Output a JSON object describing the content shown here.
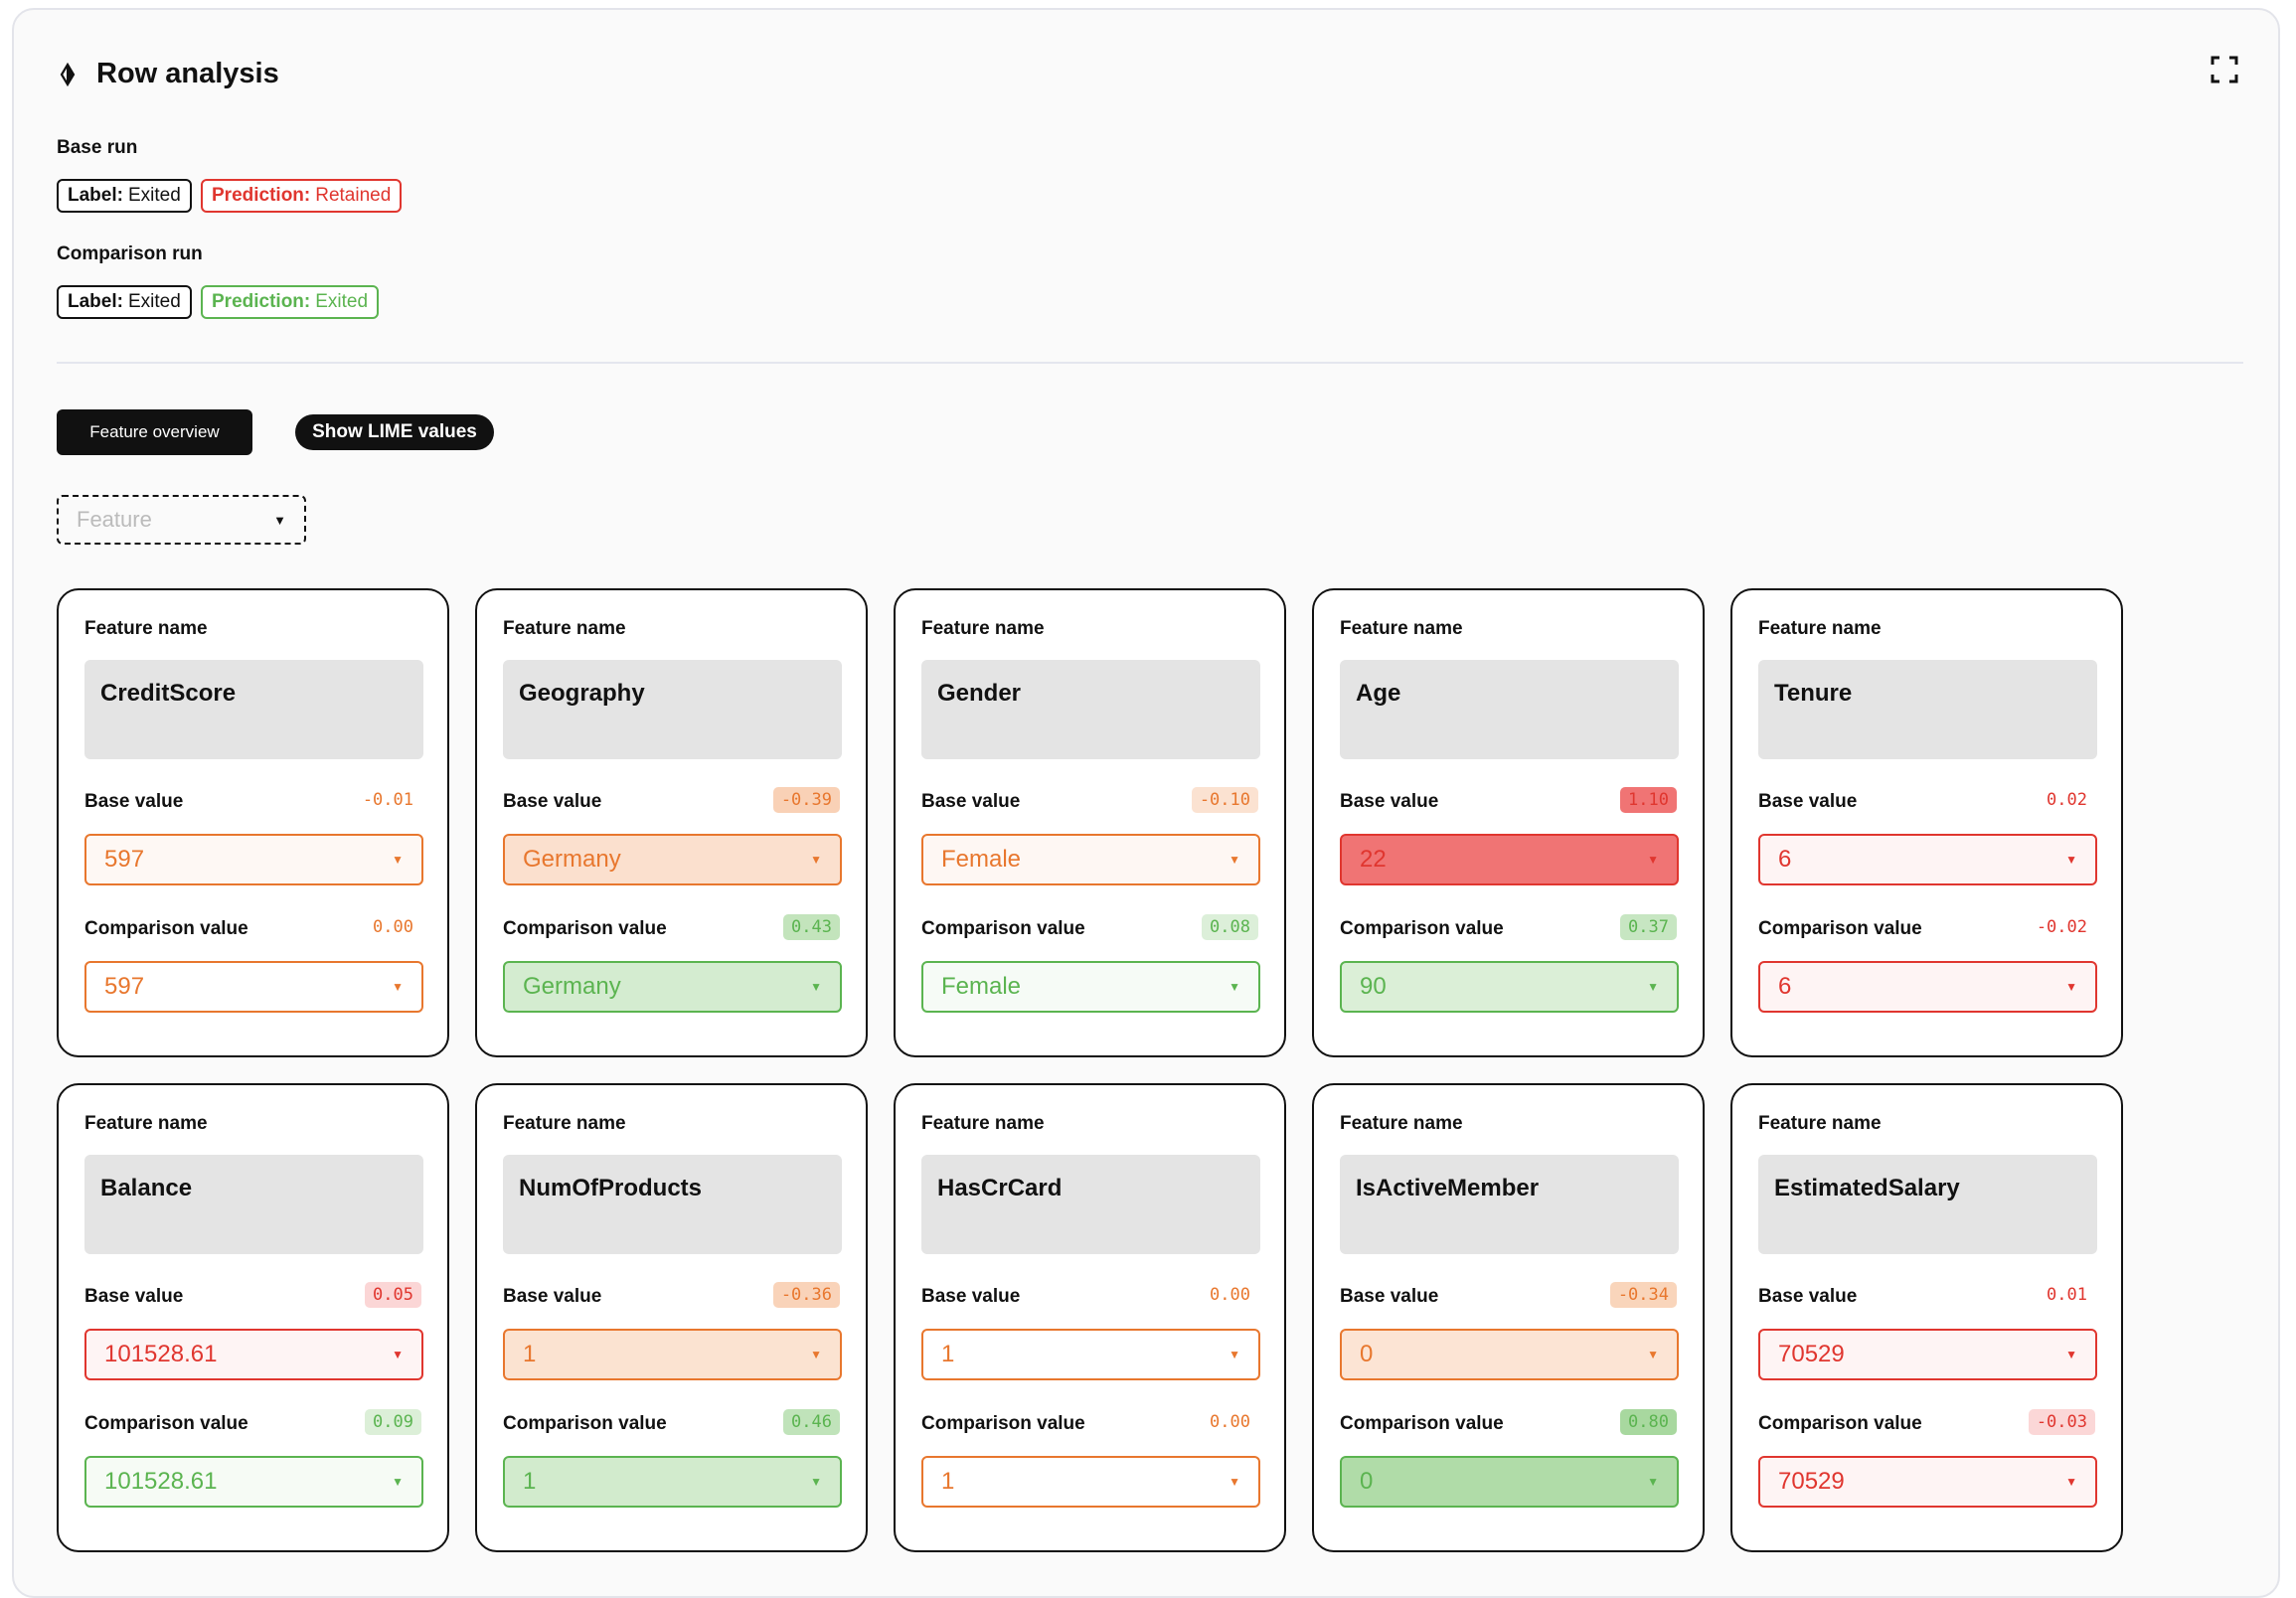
{
  "panel": {
    "title": "Row analysis",
    "icon": "diamond-pin-icon",
    "expand_icon": "expand-icon"
  },
  "base_run": {
    "title": "Base run",
    "label": {
      "key": "Label:",
      "value": "Exited"
    },
    "prediction": {
      "key": "Prediction:",
      "value": "Retained",
      "color": "#e0362f"
    }
  },
  "comparison_run": {
    "title": "Comparison run",
    "label": {
      "key": "Label:",
      "value": "Exited"
    },
    "prediction": {
      "key": "Prediction:",
      "value": "Exited",
      "color": "#5bb450"
    }
  },
  "controls": {
    "feature_overview": "Feature overview",
    "show_lime": "Show LIME values",
    "feature_placeholder": "Feature"
  },
  "card_labels": {
    "feature_name": "Feature name",
    "base_value": "Base value",
    "comparison_value": "Comparison value"
  },
  "features": [
    {
      "name": "CreditScore",
      "base_value": "597",
      "base_score": "-0.01",
      "comparison_value": "597",
      "comparison_score": "0.00"
    },
    {
      "name": "Geography",
      "base_value": "Germany",
      "base_score": "-0.39",
      "comparison_value": "Germany",
      "comparison_score": "0.43"
    },
    {
      "name": "Gender",
      "base_value": "Female",
      "base_score": "-0.10",
      "comparison_value": "Female",
      "comparison_score": "0.08"
    },
    {
      "name": "Age",
      "base_value": "22",
      "base_score": "1.10",
      "comparison_value": "90",
      "comparison_score": "0.37"
    },
    {
      "name": "Tenure",
      "base_value": "6",
      "base_score": "0.02",
      "comparison_value": "6",
      "comparison_score": "-0.02"
    },
    {
      "name": "Balance",
      "base_value": "101528.61",
      "base_score": "0.05",
      "comparison_value": "101528.61",
      "comparison_score": "0.09"
    },
    {
      "name": "NumOfProducts",
      "base_value": "1",
      "base_score": "-0.36",
      "comparison_value": "1",
      "comparison_score": "0.46"
    },
    {
      "name": "HasCrCard",
      "base_value": "1",
      "base_score": "0.00",
      "comparison_value": "1",
      "comparison_score": "0.00"
    },
    {
      "name": "IsActiveMember",
      "base_value": "0",
      "base_score": "-0.34",
      "comparison_value": "0",
      "comparison_score": "0.80"
    },
    {
      "name": "EstimatedSalary",
      "base_value": "70529",
      "base_score": "0.01",
      "comparison_value": "70529",
      "comparison_score": "-0.03"
    }
  ],
  "colors": {
    "orange": "#e8772e",
    "red": "#e0362f",
    "green": "#5bb450",
    "neutral_orange": "#ee8a3a"
  }
}
